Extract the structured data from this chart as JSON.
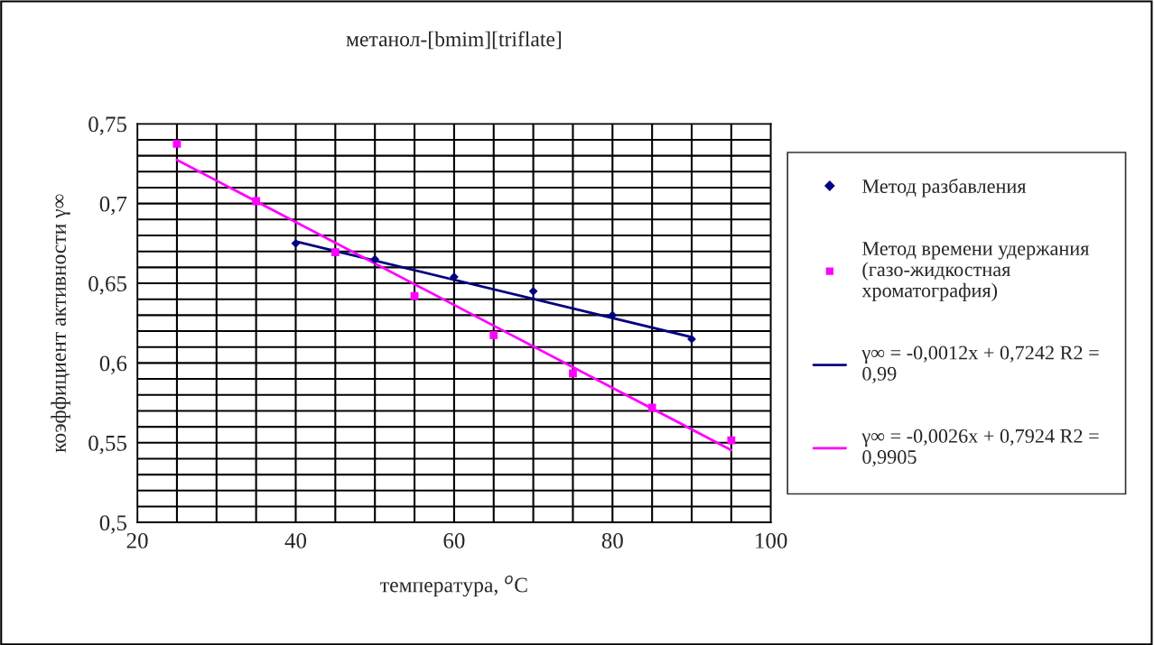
{
  "chart_data": {
    "type": "scatter",
    "title": "метанол-[bmim][triflate]",
    "xlabel": "температура, $^{o}$C",
    "ylabel": "коэффициент активности γ∞",
    "xlim": [
      20,
      100
    ],
    "xticks": [
      20,
      {
        "value": 25,
        "label": null
      },
      {
        "value": 30,
        "label": null
      },
      {
        "value": 35,
        "label": null
      },
      40,
      {
        "value": 45,
        "label": null
      },
      {
        "value": 50,
        "label": null
      },
      {
        "value": 55,
        "label": null
      },
      60,
      {
        "value": 65,
        "label": null
      },
      {
        "value": 70,
        "label": null
      },
      {
        "value": 75,
        "label": null
      },
      80,
      {
        "value": 85,
        "label": null
      },
      {
        "value": 90,
        "label": null
      },
      {
        "value": 95,
        "label": null
      },
      100
    ],
    "ylim": [
      0.5,
      0.75
    ],
    "yticks": [
      {
        "value": 0.5,
        "label": "0,5"
      },
      {
        "value": 0.51,
        "label": null
      },
      {
        "value": 0.52,
        "label": null
      },
      {
        "value": 0.53,
        "label": null
      },
      {
        "value": 0.54,
        "label": null
      },
      {
        "value": 0.55,
        "label": "0,55"
      },
      {
        "value": 0.56,
        "label": null
      },
      {
        "value": 0.57,
        "label": null
      },
      {
        "value": 0.58,
        "label": null
      },
      {
        "value": 0.59,
        "label": null
      },
      {
        "value": 0.6,
        "label": "0,6"
      },
      {
        "value": 0.61,
        "label": null
      },
      {
        "value": 0.62,
        "label": null
      },
      {
        "value": 0.63,
        "label": null
      },
      {
        "value": 0.64,
        "label": null
      },
      {
        "value": 0.65,
        "label": "0,65"
      },
      {
        "value": 0.66,
        "label": null
      },
      {
        "value": 0.67,
        "label": null
      },
      {
        "value": 0.68,
        "label": null
      },
      {
        "value": 0.69,
        "label": null
      },
      {
        "value": 0.7,
        "label": "0,7"
      },
      {
        "value": 0.71,
        "label": null
      },
      {
        "value": 0.72,
        "label": null
      },
      {
        "value": 0.73,
        "label": null
      },
      {
        "value": 0.74,
        "label": null
      },
      {
        "value": 0.75,
        "label": "0,75"
      }
    ],
    "grid": true,
    "legend": "right",
    "series": [
      {
        "name": "Метод разбавления",
        "marker": "diamond",
        "color": "#000080",
        "x": [
          40,
          50,
          60,
          70,
          80,
          90
        ],
        "values": [
          0.675,
          0.665,
          0.654,
          0.645,
          0.63,
          0.615
        ]
      },
      {
        "name": "Метод времени удержания (газо-жидкостная хроматография)",
        "marker": "square",
        "color": "#ff00ff",
        "x": [
          25,
          35,
          45,
          55,
          65,
          75,
          85,
          95
        ],
        "values": [
          0.7375,
          0.7015,
          0.6695,
          0.642,
          0.6175,
          0.5935,
          0.572,
          0.5515
        ]
      },
      {
        "name": "γ∞ = -0,0012x + 0,7242 R2 = 0,99",
        "type": "line",
        "marker": "none",
        "color": "#000080",
        "x": [
          40,
          90
        ],
        "values": [
          0.6762,
          0.6162
        ]
      },
      {
        "name": "γ∞ = -0,0026x + 0,7924 R2 = 0,9905",
        "type": "line",
        "marker": "none",
        "color": "#ff00ff",
        "x": [
          25,
          95
        ],
        "values": [
          0.7274,
          0.5454
        ]
      }
    ]
  }
}
